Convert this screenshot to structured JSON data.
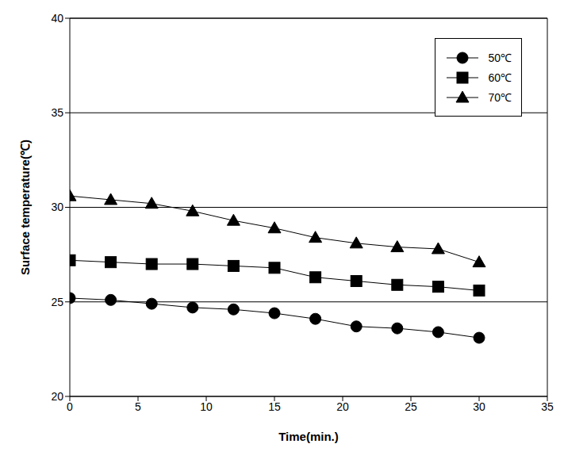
{
  "chart_data": {
    "type": "line",
    "x_label": "Time(min.)",
    "y_label": "Surface temperature(℃)",
    "x": [
      0,
      3,
      6,
      9,
      12,
      15,
      18,
      21,
      24,
      27,
      30
    ],
    "series": [
      {
        "name": "50℃",
        "color": "#000000",
        "marker": "circle",
        "values": [
          25.2,
          25.1,
          24.9,
          24.7,
          24.6,
          24.4,
          24.1,
          23.7,
          23.6,
          23.4,
          23.1
        ]
      },
      {
        "name": "60℃",
        "color": "#000000",
        "marker": "square",
        "values": [
          27.2,
          27.1,
          27.0,
          27.0,
          26.9,
          26.8,
          26.3,
          26.1,
          25.9,
          25.8,
          25.6
        ]
      },
      {
        "name": "70℃",
        "color": "#000000",
        "marker": "triangle",
        "values": [
          30.6,
          30.4,
          30.2,
          29.8,
          29.3,
          28.9,
          28.4,
          28.1,
          27.9,
          27.8,
          27.1
        ]
      }
    ],
    "xlim": [
      0,
      35
    ],
    "xticks": [
      0,
      5,
      10,
      15,
      20,
      25,
      30,
      35
    ],
    "ylim": [
      20,
      40
    ],
    "yticks": [
      20,
      25,
      30,
      35,
      40
    ],
    "grid": true,
    "legend": "upper right"
  }
}
